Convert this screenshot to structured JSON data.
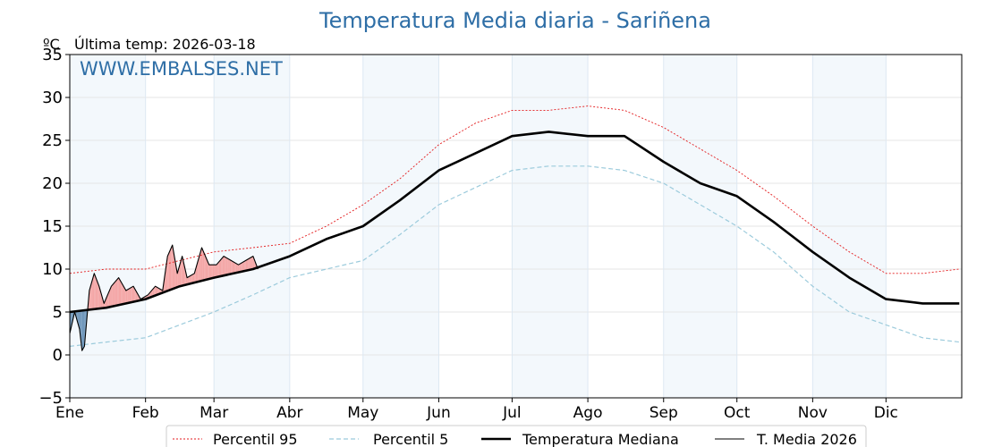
{
  "chart_data": {
    "type": "line",
    "title": "Temperatura Media diaria - Sariñena",
    "unit": "ºC",
    "last_update": "Última temp: 2026-03-18",
    "watermark": "WWW.EMBALSES.NET",
    "ylim": [
      -5,
      35
    ],
    "yticks": [
      -5,
      0,
      5,
      10,
      15,
      20,
      25,
      30,
      35
    ],
    "ytick_labels": [
      "−5",
      "0",
      "5",
      "10",
      "15",
      "20",
      "25",
      "30",
      "35"
    ],
    "xlim": [
      0,
      365
    ],
    "months": [
      "Ene",
      "Feb",
      "Mar",
      "Abr",
      "May",
      "Jun",
      "Jul",
      "Ago",
      "Sep",
      "Oct",
      "Nov",
      "Dic"
    ],
    "month_start_day": [
      0,
      31,
      59,
      90,
      120,
      151,
      181,
      212,
      243,
      273,
      304,
      334
    ],
    "grid": true,
    "legend_position": "bottom",
    "series": [
      {
        "name": "Percentil 95",
        "color": "#e31a1c",
        "style": "dotted",
        "x": [
          0,
          15,
          31,
          45,
          59,
          75,
          90,
          105,
          120,
          135,
          151,
          166,
          181,
          196,
          212,
          227,
          243,
          258,
          273,
          288,
          304,
          319,
          334,
          349,
          364
        ],
        "y": [
          9.5,
          10.0,
          10.0,
          11.0,
          12.0,
          12.5,
          13.0,
          15.0,
          17.5,
          20.5,
          24.5,
          27.0,
          28.5,
          28.5,
          29.0,
          28.5,
          26.5,
          24.0,
          21.5,
          18.5,
          15.0,
          12.0,
          9.5,
          9.5,
          10.0
        ]
      },
      {
        "name": "Percentil 5",
        "color": "#9ccbdc",
        "style": "dashed",
        "x": [
          0,
          15,
          31,
          45,
          59,
          75,
          90,
          105,
          120,
          135,
          151,
          166,
          181,
          196,
          212,
          227,
          243,
          258,
          273,
          288,
          304,
          319,
          334,
          349,
          364
        ],
        "y": [
          1.0,
          1.5,
          2.0,
          3.5,
          5.0,
          7.0,
          9.0,
          10.0,
          11.0,
          14.0,
          17.5,
          19.5,
          21.5,
          22.0,
          22.0,
          21.5,
          20.0,
          17.5,
          15.0,
          12.0,
          8.0,
          5.0,
          3.5,
          2.0,
          1.5
        ]
      },
      {
        "name": "Temperatura Mediana",
        "color": "#000000",
        "style": "solid-thick",
        "x": [
          0,
          15,
          31,
          45,
          59,
          75,
          90,
          105,
          120,
          135,
          151,
          166,
          181,
          196,
          212,
          227,
          243,
          258,
          273,
          288,
          304,
          319,
          334,
          349,
          364
        ],
        "y": [
          5.0,
          5.5,
          6.5,
          8.0,
          9.0,
          10.0,
          11.5,
          13.5,
          15.0,
          18.0,
          21.5,
          23.5,
          25.5,
          26.0,
          25.5,
          25.5,
          22.5,
          20.0,
          18.5,
          15.5,
          12.0,
          9.0,
          6.5,
          6.0,
          6.0
        ]
      },
      {
        "name": "T. Media 2026",
        "color": "#000000",
        "style": "solid-thin",
        "x": [
          0,
          2,
          4,
          5,
          6,
          8,
          10,
          12,
          14,
          17,
          20,
          23,
          26,
          29,
          32,
          35,
          38,
          40,
          42,
          44,
          46,
          48,
          51,
          54,
          57,
          60,
          63,
          66,
          69,
          72,
          75,
          77
        ],
        "y": [
          2.5,
          5.0,
          3.0,
          0.5,
          1.0,
          7.5,
          9.5,
          8.0,
          6.0,
          8.0,
          9.0,
          7.5,
          8.0,
          6.5,
          7.0,
          8.0,
          7.5,
          11.5,
          12.8,
          9.5,
          11.5,
          9.0,
          9.5,
          12.5,
          10.5,
          10.5,
          11.5,
          11.0,
          10.5,
          11.0,
          11.5,
          10.0
        ]
      }
    ]
  }
}
